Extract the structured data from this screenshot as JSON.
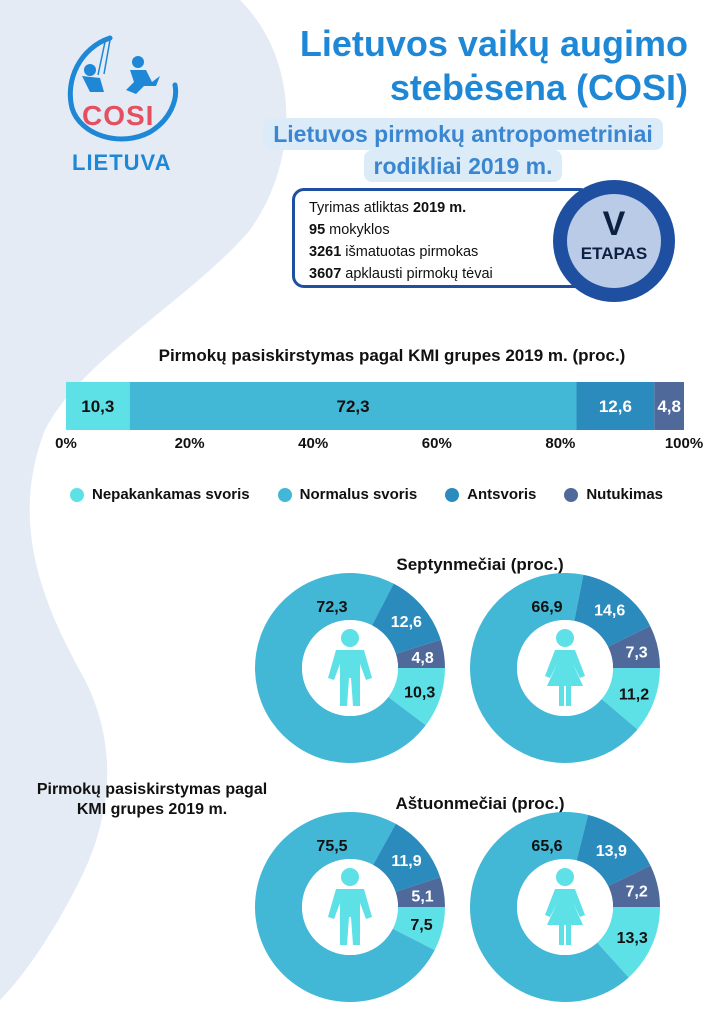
{
  "logo": {
    "brand": "COSI",
    "country": "LIETUVA"
  },
  "header": {
    "title_line1": "Lietuvos vaikų augimo",
    "title_line2": "stebėsena (COSI)",
    "subtitle_line1": "Lietuvos pirmokų antropometriniai",
    "subtitle_line2": "rodikliai 2019 m."
  },
  "info": {
    "lines": [
      {
        "prefix": "Tyrimas atliktas ",
        "bold": "2019 m.",
        "suffix": ""
      },
      {
        "prefix": "",
        "bold": "95",
        "suffix": " mokyklos"
      },
      {
        "prefix": "",
        "bold": "3261",
        "suffix": " išmatuotas pirmokas"
      },
      {
        "prefix": "",
        "bold": "3607",
        "suffix": " apklausti pirmokų tėvai"
      }
    ],
    "stage_number": "V",
    "stage_label": "ETAPAS"
  },
  "colors": {
    "underweight": "#5ee1e6",
    "normal": "#42b7d6",
    "overweight": "#2b8bbd",
    "obese": "#4f6a9a",
    "title_blue": "#1e88d6",
    "badge_dark": "#1e4fa0",
    "badge_light": "#b9cbe6",
    "background_blob": "#e5ebf5"
  },
  "left_caption": {
    "line1": "Pirmokų pasiskirstymas pagal",
    "line2": "KMI grupes 2019 m."
  },
  "chart_data": [
    {
      "type": "bar",
      "orientation": "horizontal-stacked",
      "title": "Pirmokų pasiskirstymas pagal KMI grupes 2019 m.  (proc.)",
      "series": [
        {
          "name": "Nepakankamas svoris",
          "values": [
            10.3
          ],
          "label": "10,3"
        },
        {
          "name": "Normalus svoris",
          "values": [
            72.3
          ],
          "label": "72,3"
        },
        {
          "name": "Antsvoris",
          "values": [
            12.6
          ],
          "label": "12,6"
        },
        {
          "name": "Nutukimas",
          "values": [
            4.8
          ],
          "label": "4,8"
        }
      ],
      "xlim": [
        0,
        100
      ],
      "xticks": [
        "0%",
        "20%",
        "40%",
        "60%",
        "80%",
        "100%"
      ],
      "legend": [
        "Nepakankamas svoris",
        "Normalus svoris",
        "Antsvoris",
        "Nutukimas"
      ],
      "legend_position": "bottom"
    },
    {
      "type": "pie",
      "donut": true,
      "group_title": "Septynmečiai (proc.)",
      "gender": "boy",
      "slices": [
        {
          "name": "Nepakankamas svoris",
          "value": 10.3,
          "label": "10,3"
        },
        {
          "name": "Normalus svoris",
          "value": 72.3,
          "label": "72,3"
        },
        {
          "name": "Antsvoris",
          "value": 12.6,
          "label": "12,6"
        },
        {
          "name": "Nutukimas",
          "value": 4.8,
          "label": "4,8"
        }
      ]
    },
    {
      "type": "pie",
      "donut": true,
      "group_title": "Septynmečiai (proc.)",
      "gender": "girl",
      "slices": [
        {
          "name": "Nepakankamas svoris",
          "value": 11.2,
          "label": "11,2"
        },
        {
          "name": "Normalus svoris",
          "value": 66.9,
          "label": "66,9"
        },
        {
          "name": "Antsvoris",
          "value": 14.6,
          "label": "14,6"
        },
        {
          "name": "Nutukimas",
          "value": 7.3,
          "label": "7,3"
        }
      ]
    },
    {
      "type": "pie",
      "donut": true,
      "group_title": "Aštuonmečiai (proc.)",
      "gender": "boy",
      "slices": [
        {
          "name": "Nepakankamas svoris",
          "value": 7.5,
          "label": "7,5"
        },
        {
          "name": "Normalus svoris",
          "value": 75.5,
          "label": "75,5"
        },
        {
          "name": "Antsvoris",
          "value": 11.9,
          "label": "11,9"
        },
        {
          "name": "Nutukimas",
          "value": 5.1,
          "label": "5,1"
        }
      ]
    },
    {
      "type": "pie",
      "donut": true,
      "group_title": "Aštuonmečiai (proc.)",
      "gender": "girl",
      "slices": [
        {
          "name": "Nepakankamas svoris",
          "value": 13.3,
          "label": "13,3"
        },
        {
          "name": "Normalus svoris",
          "value": 65.6,
          "label": "65,6"
        },
        {
          "name": "Antsvoris",
          "value": 13.9,
          "label": "13,9"
        },
        {
          "name": "Nutukimas",
          "value": 7.2,
          "label": "7,2"
        }
      ]
    }
  ]
}
